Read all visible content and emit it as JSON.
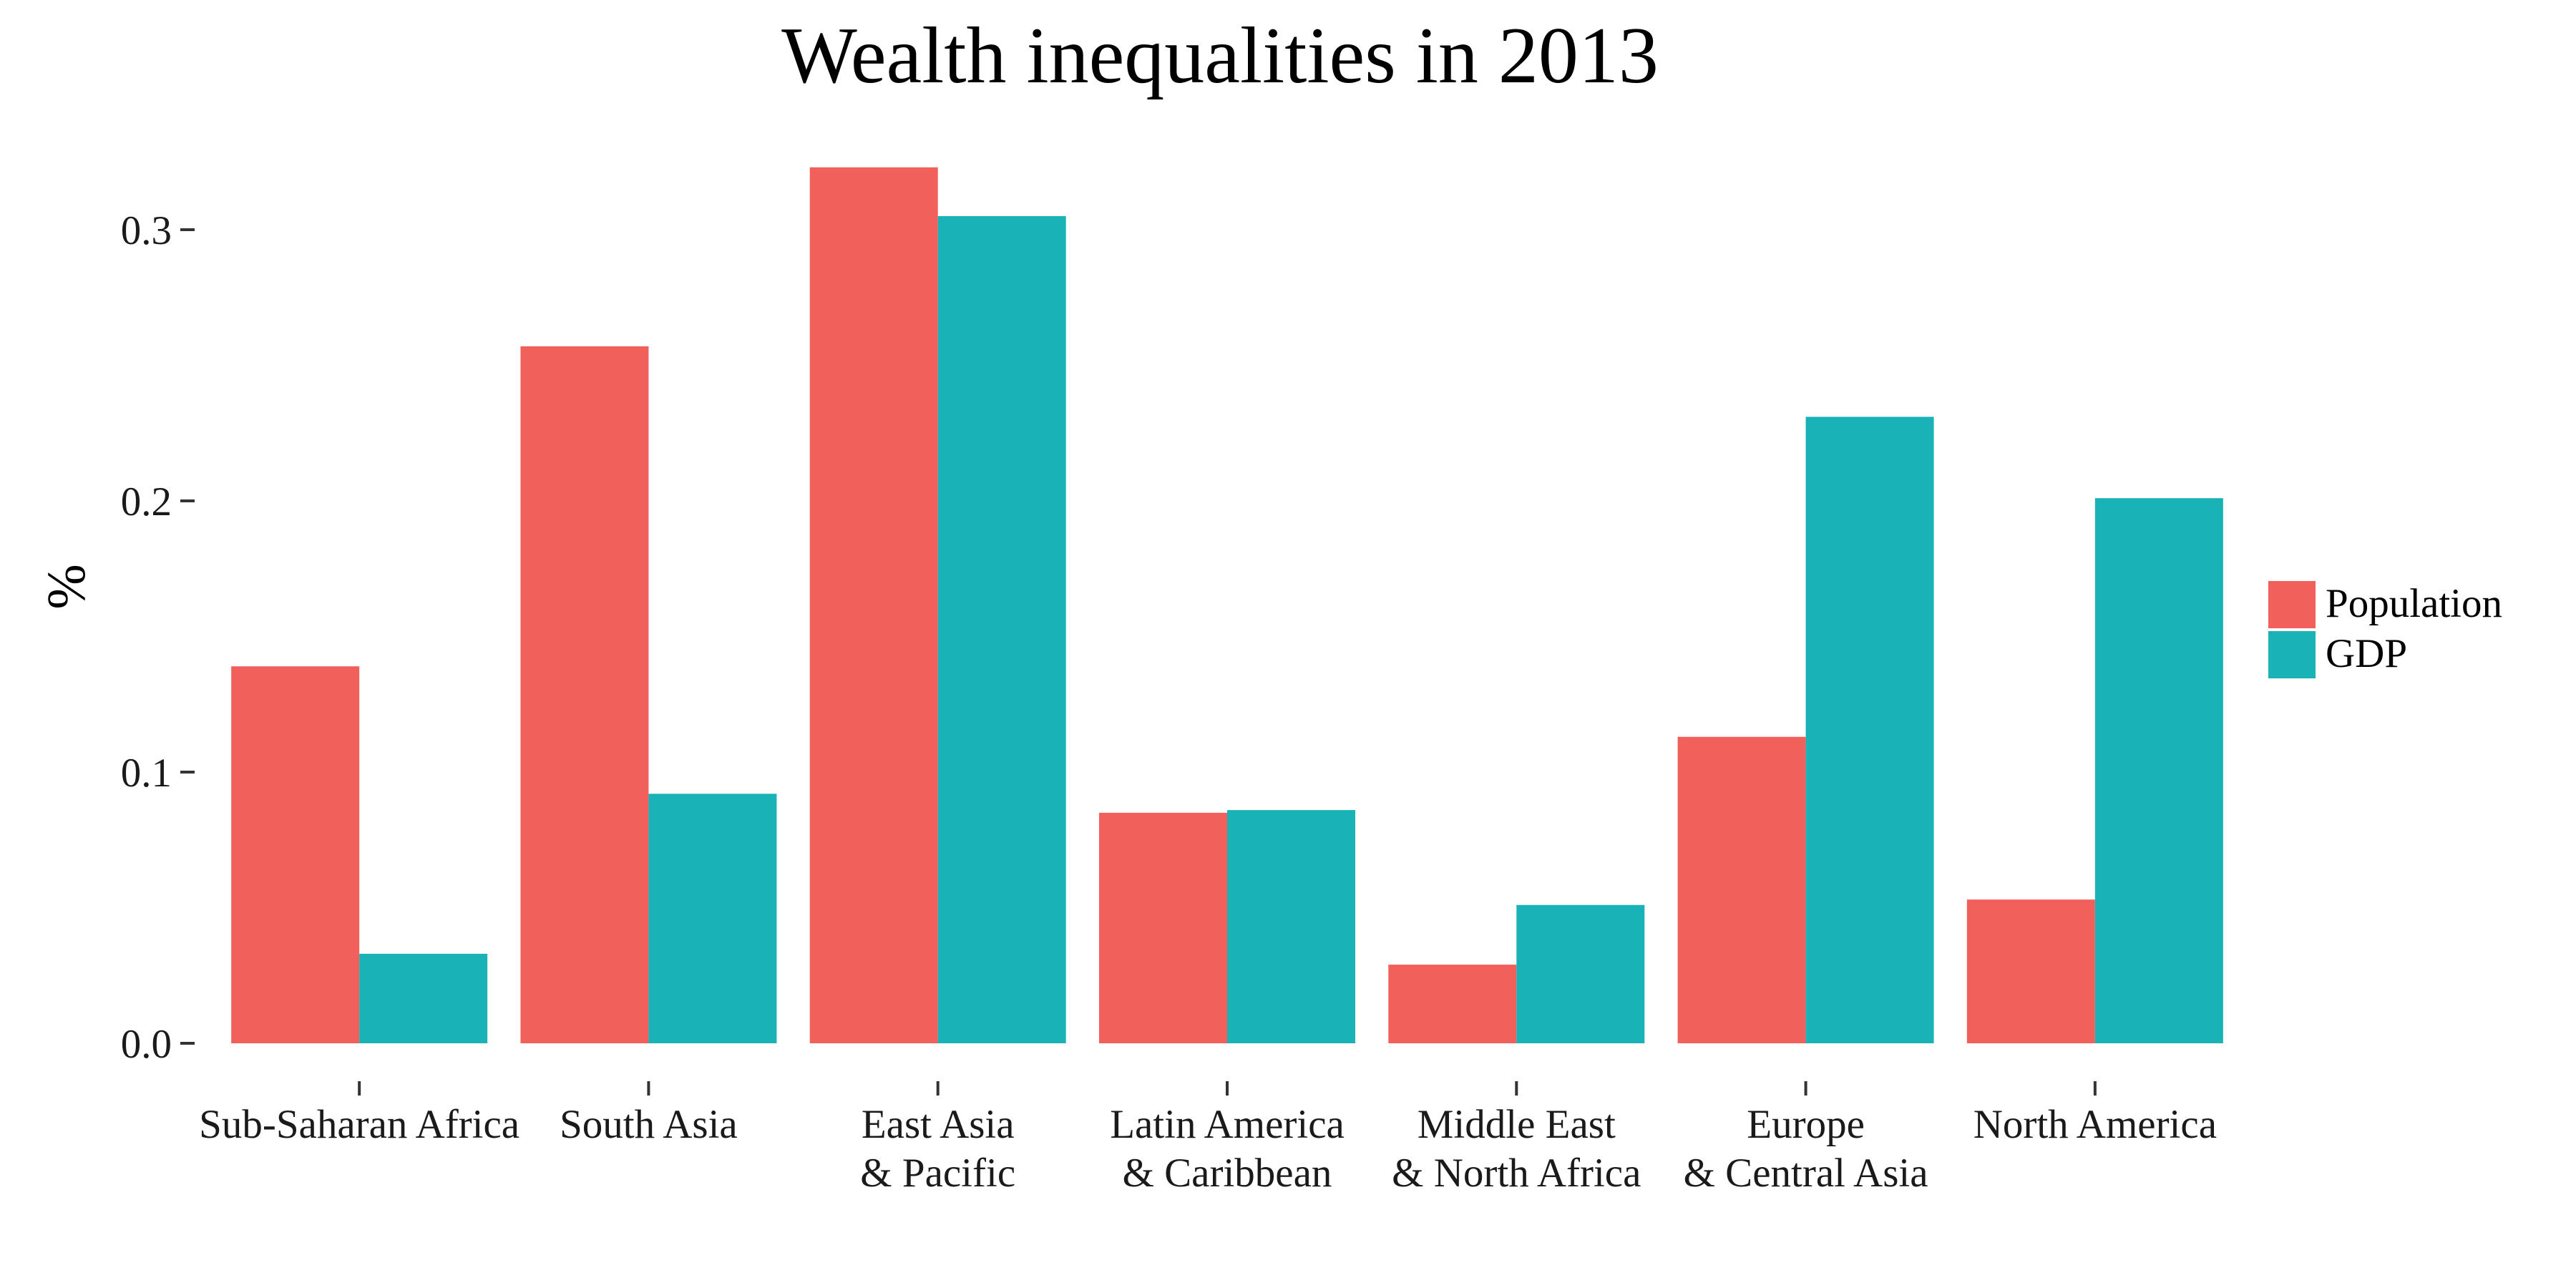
{
  "chart_data": {
    "type": "bar",
    "title": "Wealth inequalities in 2013",
    "xlabel": "",
    "ylabel": "%",
    "ylim": [
      0,
      0.33
    ],
    "yticks": [
      0.0,
      0.1,
      0.2,
      0.3
    ],
    "ytick_labels": [
      "0.0",
      "0.1",
      "0.2",
      "0.3"
    ],
    "grid": false,
    "legend_position": "right",
    "categories": [
      [
        "Sub-Saharan Africa"
      ],
      [
        "South Asia"
      ],
      [
        "East Asia",
        "&  Pacific"
      ],
      [
        "Latin America",
        "&  Caribbean"
      ],
      [
        "Middle East",
        "&  North Africa"
      ],
      [
        "Europe",
        "&  Central Asia"
      ],
      [
        "North America"
      ]
    ],
    "series": [
      {
        "name": "Population",
        "color": "#F2605B",
        "values": [
          0.139,
          0.257,
          0.323,
          0.085,
          0.029,
          0.113,
          0.053
        ]
      },
      {
        "name": "GDP",
        "color": "#19B3B7",
        "values": [
          0.033,
          0.092,
          0.305,
          0.086,
          0.051,
          0.231,
          0.201
        ]
      }
    ]
  }
}
